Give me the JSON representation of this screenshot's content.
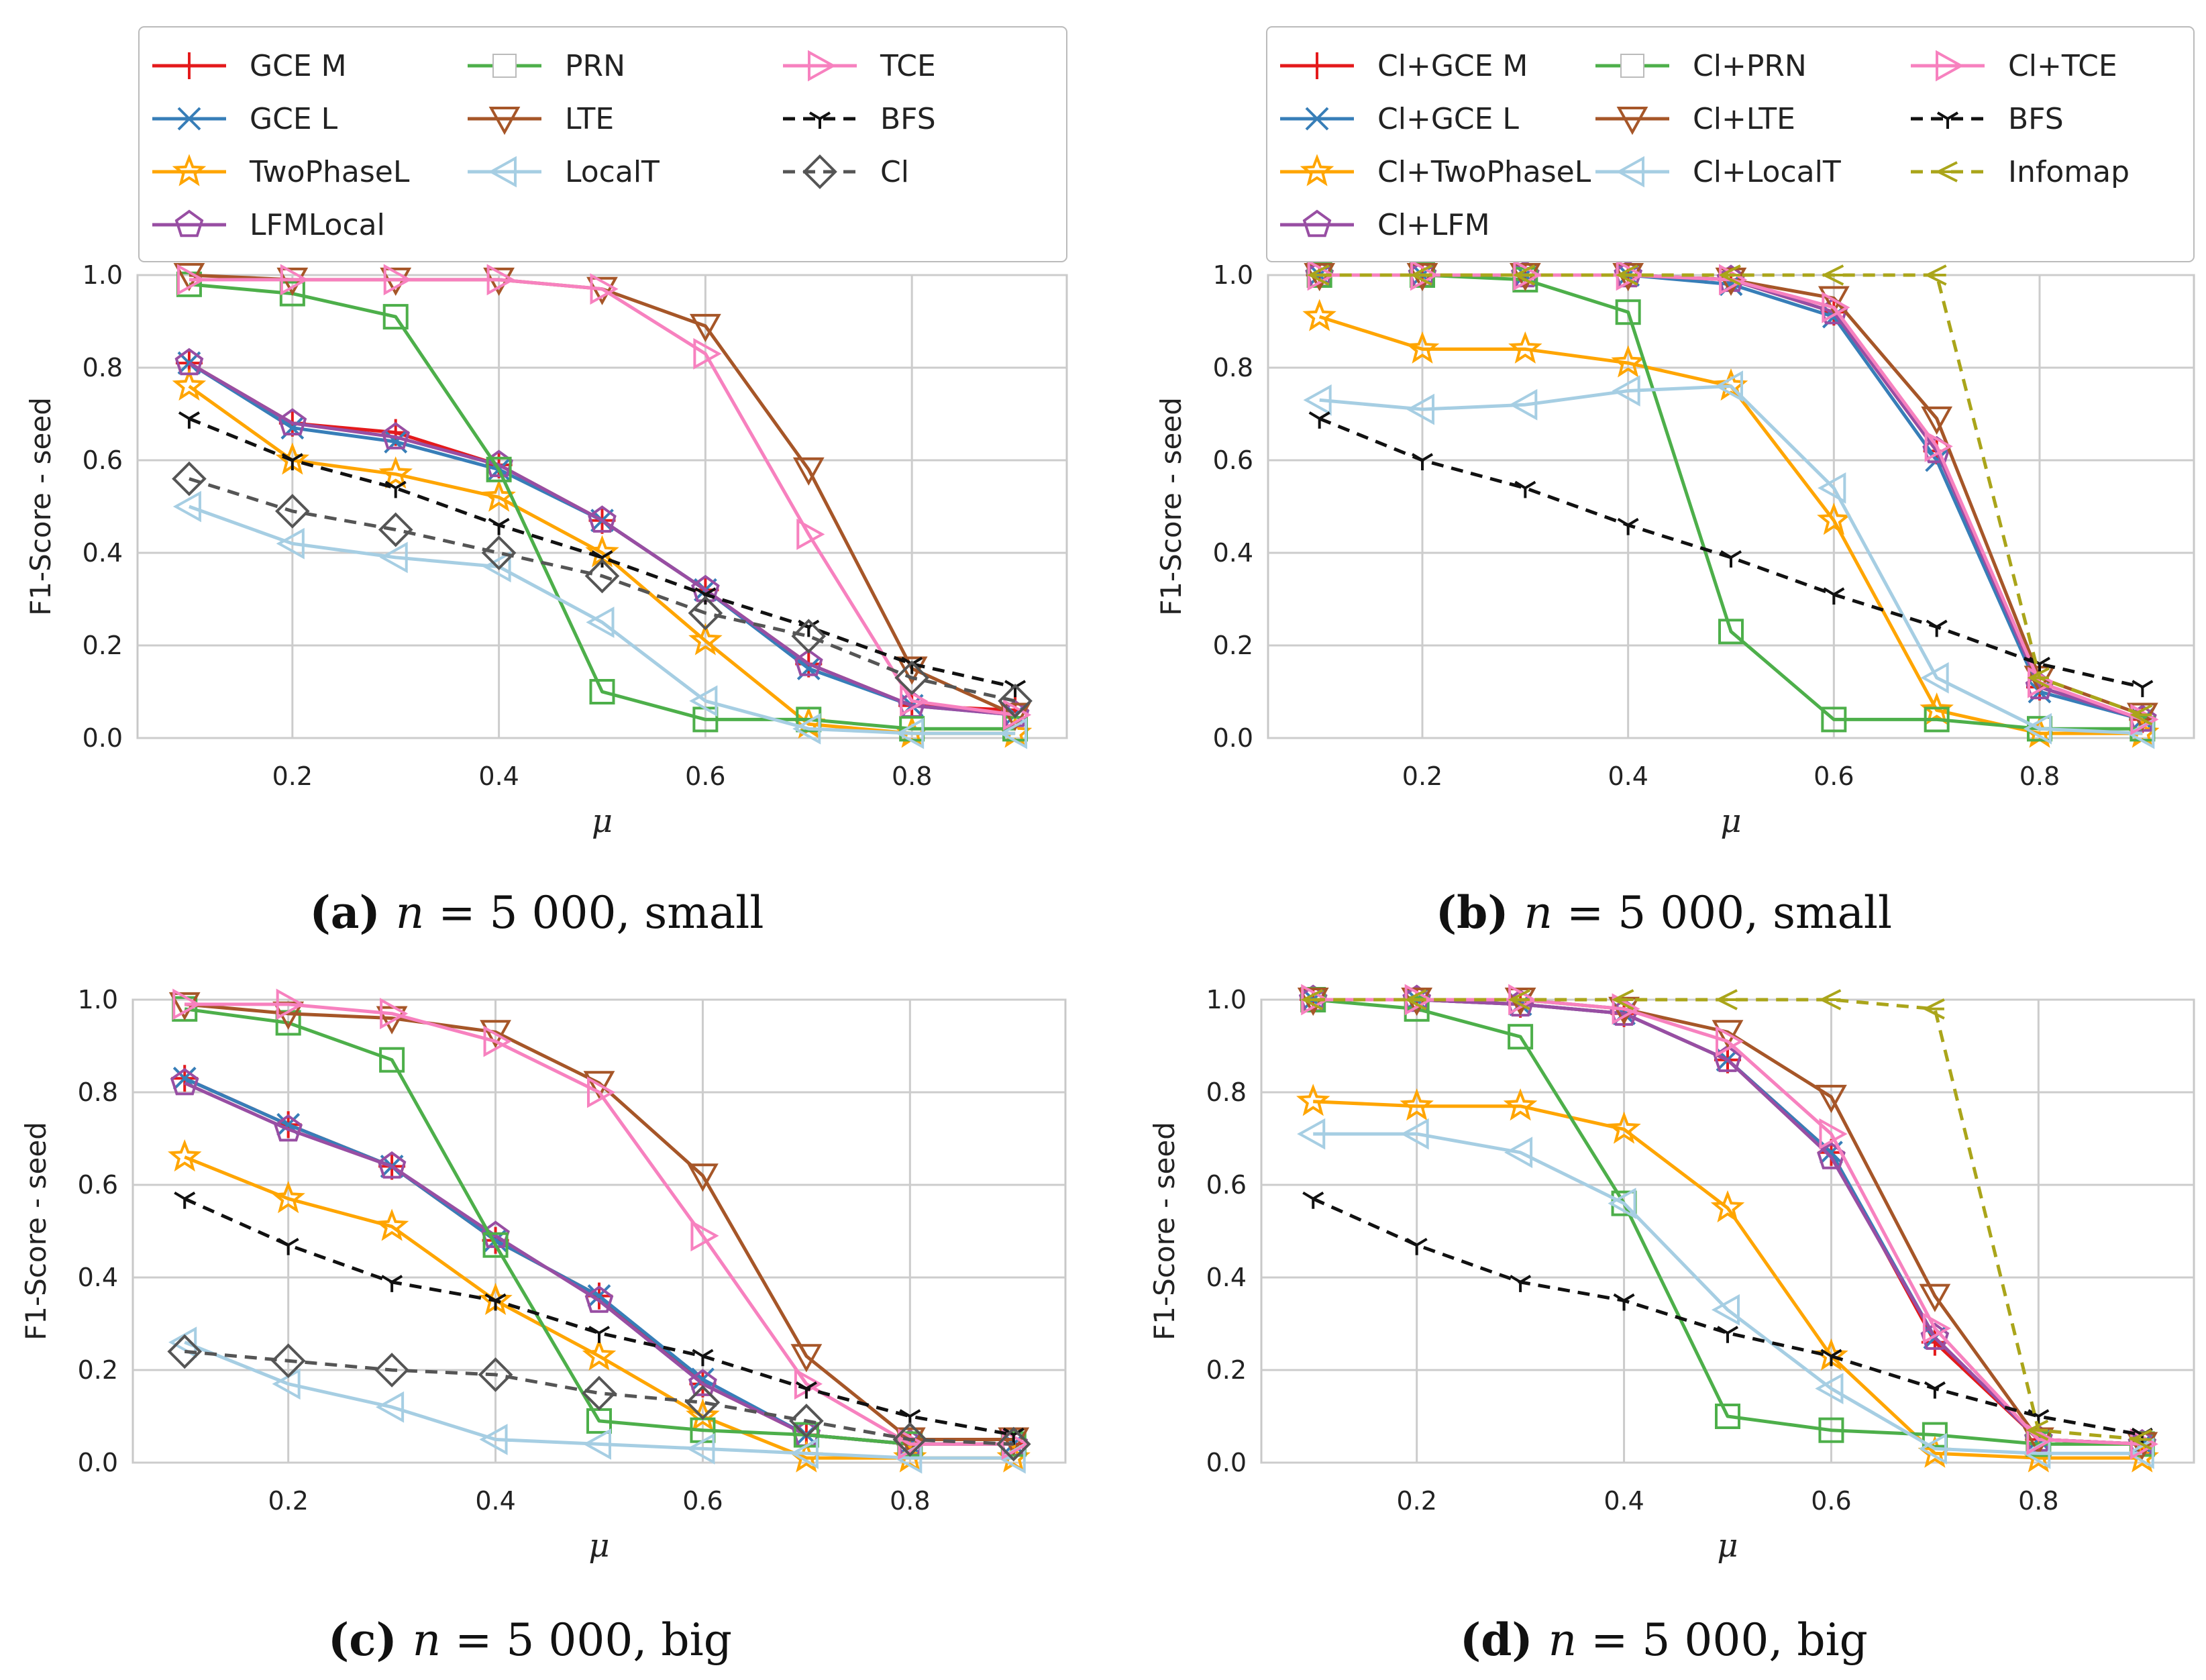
{
  "chart_data": [
    {
      "type": "line",
      "panel_tag": "a",
      "caption": {
        "tag": "(a)",
        "n_var": "n",
        "eq": "= 5 000, small"
      },
      "ylabel": "F1-Score - seed",
      "xlabel": "μ",
      "xlim": [
        0.05,
        0.95
      ],
      "ylim": [
        0,
        1
      ],
      "xticks": [
        "0.2",
        "0.4",
        "0.6",
        "0.8"
      ],
      "yticks": [
        "0.0",
        "0.2",
        "0.4",
        "0.6",
        "0.8",
        "1.0"
      ],
      "grid": true,
      "legend_columns": 3,
      "legend_position": "top",
      "x": [
        0.1,
        0.2,
        0.3,
        0.4,
        0.5,
        0.6,
        0.7,
        0.8,
        0.9
      ],
      "series": [
        {
          "name": "GCE M",
          "color": "#e41a1c",
          "marker": "plus",
          "dash": "",
          "values": [
            0.81,
            0.68,
            0.66,
            0.59,
            0.47,
            0.32,
            0.16,
            0.07,
            0.06
          ]
        },
        {
          "name": "GCE L",
          "color": "#377eb8",
          "marker": "x",
          "dash": "",
          "values": [
            0.81,
            0.67,
            0.64,
            0.58,
            0.47,
            0.32,
            0.15,
            0.07,
            0.05
          ]
        },
        {
          "name": "TwoPhaseL",
          "color": "#ffa500",
          "marker": "star",
          "dash": "",
          "values": [
            0.76,
            0.6,
            0.57,
            0.52,
            0.4,
            0.21,
            0.03,
            0.01,
            0.01
          ]
        },
        {
          "name": "LFMLocal",
          "color": "#984ea3",
          "marker": "pentagon",
          "dash": "",
          "values": [
            0.81,
            0.68,
            0.65,
            0.59,
            0.47,
            0.32,
            0.16,
            0.07,
            0.05
          ]
        },
        {
          "name": "PRN",
          "color": "#4daf4a",
          "marker": "square",
          "dash": "",
          "values": [
            0.98,
            0.96,
            0.91,
            0.58,
            0.1,
            0.04,
            0.04,
            0.02,
            0.02
          ]
        },
        {
          "name": "LTE",
          "color": "#a65628",
          "marker": "tri_down",
          "dash": "",
          "values": [
            1.0,
            0.99,
            0.99,
            0.99,
            0.97,
            0.89,
            0.58,
            0.15,
            0.05
          ]
        },
        {
          "name": "LocalT",
          "color": "#a6cee3",
          "marker": "tri_left",
          "dash": "",
          "values": [
            0.5,
            0.42,
            0.39,
            0.37,
            0.25,
            0.08,
            0.02,
            0.01,
            0.01
          ]
        },
        {
          "name": "TCE",
          "color": "#f781bf",
          "marker": "tri_right",
          "dash": "",
          "values": [
            0.99,
            0.99,
            0.99,
            0.99,
            0.97,
            0.83,
            0.44,
            0.08,
            0.05
          ]
        },
        {
          "name": "BFS",
          "color": "#111111",
          "marker": "tri_y",
          "dash": "18,12",
          "values": [
            0.69,
            0.6,
            0.54,
            0.46,
            0.39,
            0.31,
            0.24,
            0.16,
            0.11
          ]
        },
        {
          "name": "Cl",
          "color": "#555555",
          "marker": "diamond",
          "dash": "18,12",
          "values": [
            0.56,
            0.49,
            0.45,
            0.4,
            0.35,
            0.27,
            0.22,
            0.13,
            0.08
          ]
        }
      ]
    },
    {
      "type": "line",
      "panel_tag": "b",
      "caption": {
        "tag": "(b)",
        "n_var": "n",
        "eq": "= 5 000, small"
      },
      "ylabel": "F1-Score - seed",
      "xlabel": "μ",
      "xlim": [
        0.05,
        0.95
      ],
      "ylim": [
        0,
        1
      ],
      "xticks": [
        "0.2",
        "0.4",
        "0.6",
        "0.8"
      ],
      "yticks": [
        "0.0",
        "0.2",
        "0.4",
        "0.6",
        "0.8",
        "1.0"
      ],
      "grid": true,
      "legend_columns": 3,
      "legend_position": "top",
      "x": [
        0.1,
        0.2,
        0.3,
        0.4,
        0.5,
        0.6,
        0.7,
        0.8,
        0.9
      ],
      "series": [
        {
          "name": "Cl+GCE M",
          "color": "#e41a1c",
          "marker": "plus",
          "dash": "",
          "values": [
            1.0,
            1.0,
            1.0,
            1.0,
            0.99,
            0.92,
            0.62,
            0.11,
            0.04
          ]
        },
        {
          "name": "Cl+GCE L",
          "color": "#377eb8",
          "marker": "x",
          "dash": "",
          "values": [
            1.0,
            1.0,
            1.0,
            1.0,
            0.98,
            0.91,
            0.6,
            0.1,
            0.04
          ]
        },
        {
          "name": "Cl+TwoPhaseL",
          "color": "#ffa500",
          "marker": "star",
          "dash": "",
          "values": [
            0.91,
            0.84,
            0.84,
            0.81,
            0.76,
            0.47,
            0.06,
            0.01,
            0.01
          ]
        },
        {
          "name": "Cl+LFM",
          "color": "#984ea3",
          "marker": "pentagon",
          "dash": "",
          "values": [
            1.0,
            1.0,
            1.0,
            1.0,
            0.99,
            0.92,
            0.62,
            0.11,
            0.04
          ]
        },
        {
          "name": "Cl+PRN",
          "color": "#4daf4a",
          "marker": "square",
          "dash": "",
          "values": [
            1.0,
            1.0,
            0.99,
            0.92,
            0.23,
            0.04,
            0.04,
            0.02,
            0.02
          ]
        },
        {
          "name": "Cl+LTE",
          "color": "#a65628",
          "marker": "tri_down",
          "dash": "",
          "values": [
            1.0,
            1.0,
            1.0,
            1.0,
            0.99,
            0.95,
            0.69,
            0.13,
            0.05
          ]
        },
        {
          "name": "Cl+LocalT",
          "color": "#a6cee3",
          "marker": "tri_left",
          "dash": "",
          "values": [
            0.73,
            0.71,
            0.72,
            0.75,
            0.76,
            0.54,
            0.13,
            0.02,
            0.01
          ]
        },
        {
          "name": "Cl+TCE",
          "color": "#f781bf",
          "marker": "tri_right",
          "dash": "",
          "values": [
            1.0,
            1.0,
            1.0,
            1.0,
            0.99,
            0.93,
            0.63,
            0.12,
            0.04
          ]
        },
        {
          "name": "BFS",
          "color": "#111111",
          "marker": "tri_y",
          "dash": "18,12",
          "values": [
            0.69,
            0.6,
            0.54,
            0.46,
            0.39,
            0.31,
            0.24,
            0.16,
            0.11
          ]
        },
        {
          "name": "Infomap",
          "color": "#aaa51a",
          "marker": "tri_left_thin",
          "dash": "18,12",
          "values": [
            1.0,
            1.0,
            1.0,
            1.0,
            1.0,
            1.0,
            1.0,
            0.13,
            0.05
          ]
        }
      ]
    },
    {
      "type": "line",
      "panel_tag": "c",
      "caption": {
        "tag": "(c)",
        "n_var": "n",
        "eq": "= 5 000, big"
      },
      "ylabel": "F1-Score - seed",
      "xlabel": "μ",
      "xlim": [
        0.05,
        0.95
      ],
      "ylim": [
        0,
        1
      ],
      "xticks": [
        "0.2",
        "0.4",
        "0.6",
        "0.8"
      ],
      "yticks": [
        "0.0",
        "0.2",
        "0.4",
        "0.6",
        "0.8",
        "1.0"
      ],
      "grid": true,
      "x": [
        0.1,
        0.2,
        0.3,
        0.4,
        0.5,
        0.6,
        0.7,
        0.8,
        0.9
      ],
      "series": [
        {
          "name": "GCE M",
          "color": "#e41a1c",
          "marker": "plus",
          "dash": "",
          "values": [
            0.83,
            0.73,
            0.64,
            0.48,
            0.36,
            0.17,
            0.06,
            0.04,
            0.04
          ]
        },
        {
          "name": "GCE L",
          "color": "#377eb8",
          "marker": "x",
          "dash": "",
          "values": [
            0.83,
            0.73,
            0.64,
            0.48,
            0.36,
            0.18,
            0.06,
            0.04,
            0.04
          ]
        },
        {
          "name": "TwoPhaseL",
          "color": "#ffa500",
          "marker": "star",
          "dash": "",
          "values": [
            0.66,
            0.57,
            0.51,
            0.35,
            0.23,
            0.1,
            0.01,
            0.01,
            0.01
          ]
        },
        {
          "name": "LFMLocal",
          "color": "#984ea3",
          "marker": "pentagon",
          "dash": "",
          "values": [
            0.82,
            0.72,
            0.64,
            0.49,
            0.35,
            0.17,
            0.06,
            0.04,
            0.04
          ]
        },
        {
          "name": "PRN",
          "color": "#4daf4a",
          "marker": "square",
          "dash": "",
          "values": [
            0.98,
            0.95,
            0.87,
            0.47,
            0.09,
            0.07,
            0.06,
            0.04,
            0.04
          ]
        },
        {
          "name": "LTE",
          "color": "#a65628",
          "marker": "tri_down",
          "dash": "",
          "values": [
            0.99,
            0.97,
            0.96,
            0.93,
            0.82,
            0.62,
            0.23,
            0.05,
            0.05
          ]
        },
        {
          "name": "LocalT",
          "color": "#a6cee3",
          "marker": "tri_left",
          "dash": "",
          "values": [
            0.26,
            0.17,
            0.12,
            0.05,
            0.04,
            0.03,
            0.02,
            0.01,
            0.01
          ]
        },
        {
          "name": "TCE",
          "color": "#f781bf",
          "marker": "tri_right",
          "dash": "",
          "values": [
            0.99,
            0.99,
            0.97,
            0.91,
            0.8,
            0.49,
            0.17,
            0.04,
            0.04
          ]
        },
        {
          "name": "BFS",
          "color": "#111111",
          "marker": "tri_y",
          "dash": "18,12",
          "values": [
            0.57,
            0.47,
            0.39,
            0.35,
            0.28,
            0.23,
            0.16,
            0.1,
            0.06
          ]
        },
        {
          "name": "Cl",
          "color": "#555555",
          "marker": "diamond",
          "dash": "18,12",
          "values": [
            0.24,
            0.22,
            0.2,
            0.19,
            0.15,
            0.13,
            0.09,
            0.05,
            0.04
          ]
        }
      ]
    },
    {
      "type": "line",
      "panel_tag": "d",
      "caption": {
        "tag": "(d)",
        "n_var": "n",
        "eq": "= 5 000, big"
      },
      "ylabel": "F1-Score - seed",
      "xlabel": "μ",
      "xlim": [
        0.05,
        0.95
      ],
      "ylim": [
        0,
        1
      ],
      "xticks": [
        "0.2",
        "0.4",
        "0.6",
        "0.8"
      ],
      "yticks": [
        "0.0",
        "0.2",
        "0.4",
        "0.6",
        "0.8",
        "1.0"
      ],
      "grid": true,
      "x": [
        0.1,
        0.2,
        0.3,
        0.4,
        0.5,
        0.6,
        0.7,
        0.8,
        0.9
      ],
      "series": [
        {
          "name": "Cl+GCE M",
          "color": "#e41a1c",
          "marker": "plus",
          "dash": "",
          "values": [
            1.0,
            1.0,
            0.99,
            0.97,
            0.87,
            0.67,
            0.26,
            0.05,
            0.04
          ]
        },
        {
          "name": "Cl+GCE L",
          "color": "#377eb8",
          "marker": "x",
          "dash": "",
          "values": [
            1.0,
            1.0,
            0.99,
            0.97,
            0.87,
            0.67,
            0.27,
            0.05,
            0.04
          ]
        },
        {
          "name": "Cl+TwoPhaseL",
          "color": "#ffa500",
          "marker": "star",
          "dash": "",
          "values": [
            0.78,
            0.77,
            0.77,
            0.72,
            0.55,
            0.23,
            0.02,
            0.01,
            0.01
          ]
        },
        {
          "name": "Cl+LFM",
          "color": "#984ea3",
          "marker": "pentagon",
          "dash": "",
          "values": [
            1.0,
            1.0,
            0.99,
            0.97,
            0.87,
            0.66,
            0.27,
            0.05,
            0.04
          ]
        },
        {
          "name": "Cl+PRN",
          "color": "#4daf4a",
          "marker": "square",
          "dash": "",
          "values": [
            1.0,
            0.98,
            0.92,
            0.56,
            0.1,
            0.07,
            0.06,
            0.04,
            0.04
          ]
        },
        {
          "name": "Cl+LTE",
          "color": "#a65628",
          "marker": "tri_down",
          "dash": "",
          "values": [
            1.0,
            1.0,
            1.0,
            0.98,
            0.93,
            0.79,
            0.36,
            0.05,
            0.04
          ]
        },
        {
          "name": "Cl+LocalT",
          "color": "#a6cee3",
          "marker": "tri_left",
          "dash": "",
          "values": [
            0.71,
            0.71,
            0.67,
            0.56,
            0.33,
            0.16,
            0.03,
            0.02,
            0.02
          ]
        },
        {
          "name": "Cl+TCE",
          "color": "#f781bf",
          "marker": "tri_right",
          "dash": "",
          "values": [
            1.0,
            1.0,
            1.0,
            0.98,
            0.91,
            0.71,
            0.29,
            0.05,
            0.04
          ]
        },
        {
          "name": "BFS",
          "color": "#111111",
          "marker": "tri_y",
          "dash": "18,12",
          "values": [
            0.57,
            0.47,
            0.39,
            0.35,
            0.28,
            0.23,
            0.16,
            0.1,
            0.06
          ]
        },
        {
          "name": "Infomap",
          "color": "#aaa51a",
          "marker": "tri_left_thin",
          "dash": "18,12",
          "values": [
            1.0,
            1.0,
            1.0,
            1.0,
            1.0,
            1.0,
            0.98,
            0.07,
            0.05
          ]
        }
      ]
    }
  ]
}
